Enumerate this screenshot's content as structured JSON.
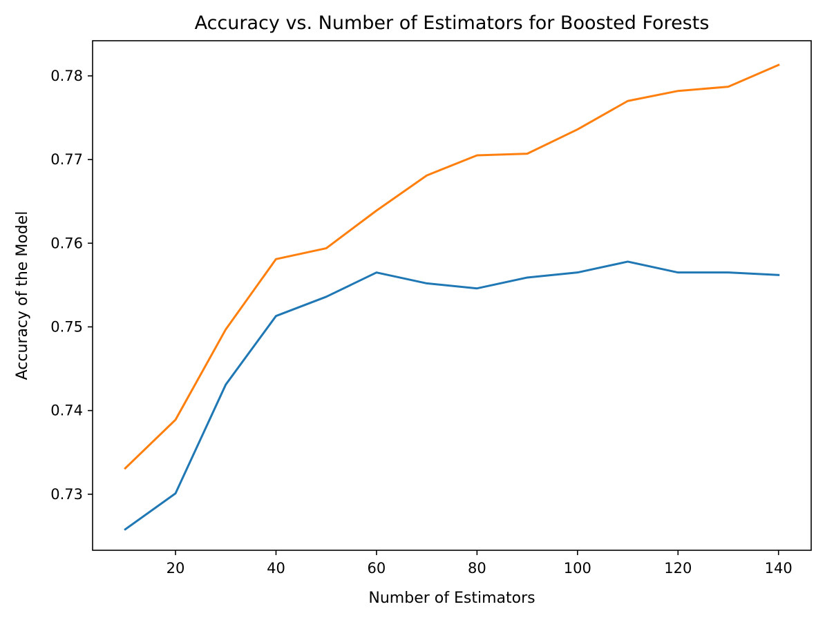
{
  "chart_data": {
    "type": "line",
    "title": "Accuracy vs. Number of Estimators for Boosted Forests",
    "xlabel": "Number of Estimators",
    "ylabel": "Accuracy of the Model",
    "xlim": [
      3.5,
      146.5
    ],
    "ylim": [
      0.7233,
      0.7842
    ],
    "xticks": [
      20,
      40,
      60,
      80,
      100,
      120,
      140
    ],
    "xtick_labels": [
      "20",
      "40",
      "60",
      "80",
      "100",
      "120",
      "140"
    ],
    "yticks": [
      0.73,
      0.74,
      0.75,
      0.76,
      0.77,
      0.78
    ],
    "ytick_labels": [
      "0.73",
      "0.74",
      "0.75",
      "0.76",
      "0.77",
      "0.78"
    ],
    "grid": false,
    "x": [
      10,
      20,
      30,
      40,
      50,
      60,
      70,
      80,
      90,
      100,
      110,
      120,
      130,
      140
    ],
    "series": [
      {
        "color": "#1f77b4",
        "values": [
          0.7258,
          0.7301,
          0.7431,
          0.7513,
          0.7536,
          0.7565,
          0.7552,
          0.7546,
          0.7559,
          0.7565,
          0.7578,
          0.7565,
          0.7565,
          0.7562
        ]
      },
      {
        "color": "#ff7f0e",
        "values": [
          0.7331,
          0.7389,
          0.7497,
          0.7581,
          0.7594,
          0.7639,
          0.7681,
          0.7705,
          0.7707,
          0.7736,
          0.777,
          0.7782,
          0.7787,
          0.7813
        ]
      }
    ]
  }
}
